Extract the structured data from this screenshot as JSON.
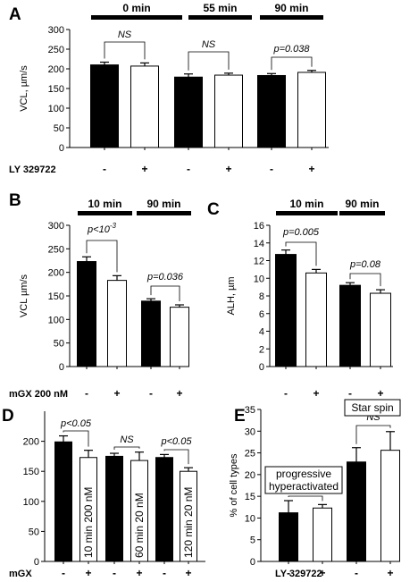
{
  "chart_data": [
    {
      "id": "A",
      "type": "bar",
      "panel_label": "A",
      "ylabel": "VCL, µm/s",
      "ylim": [
        0,
        300
      ],
      "yticks": [
        0,
        50,
        100,
        150,
        200,
        250,
        300
      ],
      "time_headers": [
        "0 min",
        "55 min",
        "90 min"
      ],
      "condition_label": "LY 329722",
      "bar_signs": [
        "-",
        "+",
        "-",
        "+",
        "-",
        "+"
      ],
      "bar_fills": [
        "#000000",
        "#ffffff",
        "#000000",
        "#ffffff",
        "#000000",
        "#ffffff"
      ],
      "values": [
        210,
        207,
        179,
        184,
        183,
        191
      ],
      "errors": [
        7,
        8,
        8,
        5,
        5,
        5
      ],
      "significance": [
        {
          "label": "NS",
          "bars": [
            0,
            1
          ]
        },
        {
          "label": "NS",
          "bars": [
            2,
            3
          ]
        },
        {
          "label": "p=0.038",
          "bars": [
            4,
            5
          ]
        }
      ]
    },
    {
      "id": "B",
      "type": "bar",
      "panel_label": "B",
      "ylabel": "VCL µm/s",
      "ylim": [
        0,
        300
      ],
      "yticks": [
        0,
        50,
        100,
        150,
        200,
        250,
        300
      ],
      "time_headers": [
        "10 min",
        "90 min"
      ],
      "condition_label": "mGX 200 nM",
      "bar_signs": [
        "-",
        "+",
        "-",
        "+"
      ],
      "bar_fills": [
        "#000000",
        "#ffffff",
        "#000000",
        "#ffffff"
      ],
      "values": [
        223,
        183,
        139,
        126
      ],
      "errors": [
        10,
        10,
        5,
        5
      ],
      "significance": [
        {
          "label": "p<10",
          "superscript": "-3",
          "bars": [
            0,
            1
          ]
        },
        {
          "label": "p=0.036",
          "bars": [
            2,
            3
          ]
        }
      ]
    },
    {
      "id": "C",
      "type": "bar",
      "panel_label": "C",
      "ylabel": "ALH, µm",
      "ylim": [
        0,
        16
      ],
      "yticks": [
        0,
        2,
        4,
        6,
        8,
        10,
        12,
        14,
        16
      ],
      "time_headers": [
        "10 min",
        "90 min"
      ],
      "condition_label": "",
      "bar_signs": [
        "-",
        "+",
        "-",
        "+"
      ],
      "bar_fills": [
        "#000000",
        "#ffffff",
        "#000000",
        "#ffffff"
      ],
      "values": [
        12.7,
        10.6,
        9.2,
        8.3
      ],
      "errors": [
        0.5,
        0.4,
        0.3,
        0.4
      ],
      "significance": [
        {
          "label": "p=0.005",
          "bars": [
            0,
            1
          ]
        },
        {
          "label": "p=0.08",
          "bars": [
            2,
            3
          ]
        }
      ]
    },
    {
      "id": "D",
      "type": "bar",
      "panel_label": "D",
      "ylabel": "",
      "ylim": [
        0,
        250
      ],
      "yticks": [
        0,
        50,
        100,
        150,
        200
      ],
      "time_headers": [],
      "condition_label": "mGX",
      "bar_signs": [
        "-",
        "+",
        "-",
        "+",
        "-",
        "+"
      ],
      "bar_fills": [
        "#000000",
        "#ffffff",
        "#000000",
        "#ffffff",
        "#000000",
        "#ffffff"
      ],
      "values": [
        199,
        173,
        175,
        168,
        173,
        150
      ],
      "errors": [
        10,
        12,
        5,
        14,
        5,
        6
      ],
      "dose_labels": [
        "10 min 200 nM",
        "60 min 20 nM",
        "120 min 20 nM"
      ],
      "significance": [
        {
          "label": "p<0.05",
          "bars": [
            0,
            1
          ]
        },
        {
          "label": "NS",
          "bars": [
            2,
            3
          ]
        },
        {
          "label": "p<0.05",
          "bars": [
            4,
            5
          ]
        }
      ]
    },
    {
      "id": "E",
      "type": "bar",
      "panel_label": "E",
      "ylabel": "% of cell types",
      "ylim": [
        0,
        35
      ],
      "yticks": [
        0,
        5,
        10,
        15,
        20,
        25,
        30,
        35
      ],
      "time_headers": [],
      "condition_label": "LY 329722",
      "bar_signs": [
        "-",
        "+",
        "-",
        "+"
      ],
      "bar_fills": [
        "#000000",
        "#ffffff",
        "#000000",
        "#ffffff"
      ],
      "values": [
        11.2,
        12.3,
        22.9,
        25.6
      ],
      "errors": [
        2.8,
        0.8,
        3.3,
        4.3
      ],
      "group_labels": [
        [
          "progressive",
          "hyperactivated"
        ],
        [
          "Star spin"
        ]
      ],
      "significance": [
        {
          "label": "NS",
          "bars": [
            0,
            1
          ]
        },
        {
          "label": "NS",
          "bars": [
            2,
            3
          ]
        }
      ]
    }
  ]
}
